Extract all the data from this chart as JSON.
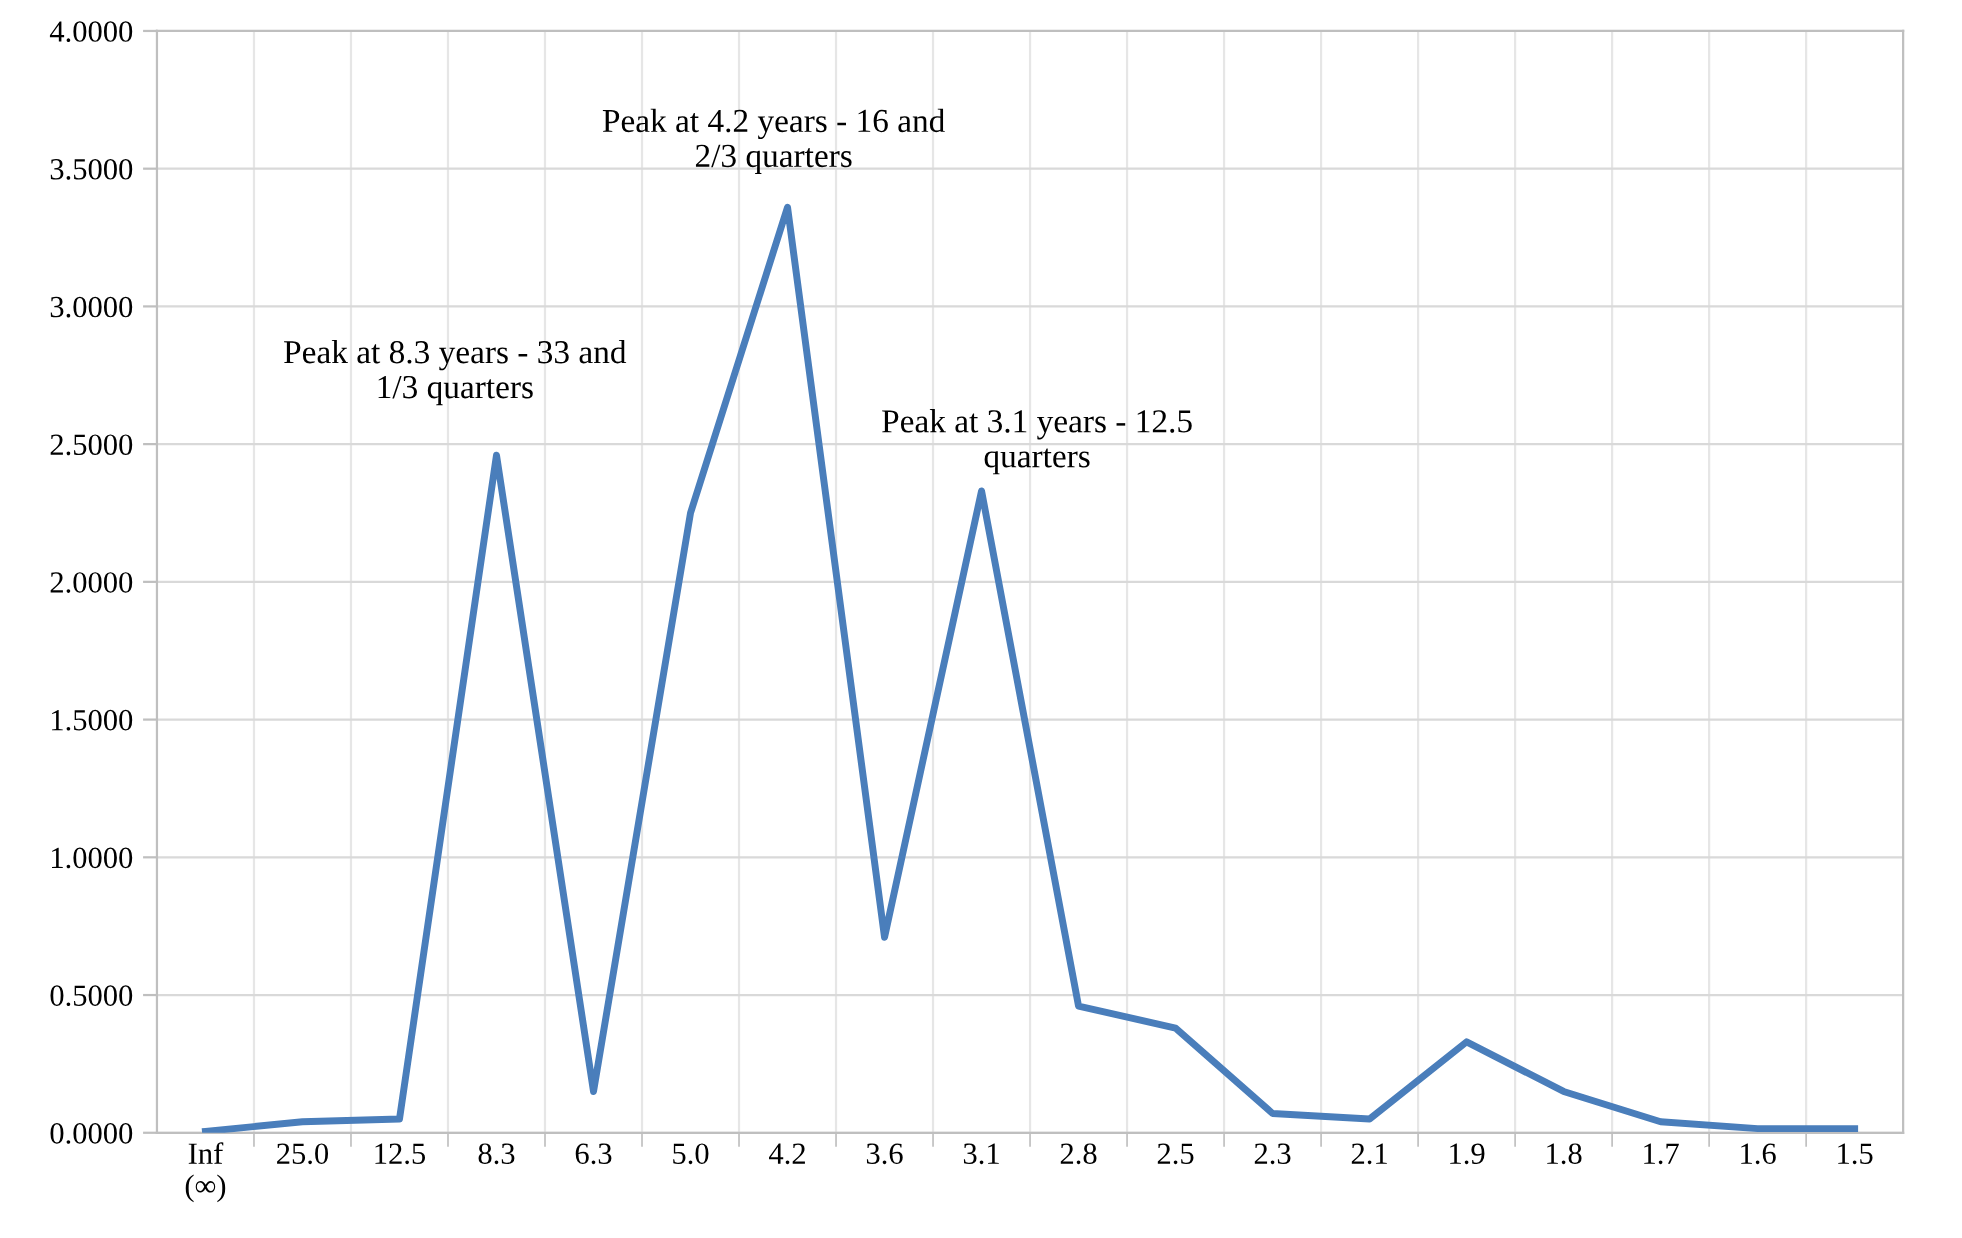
{
  "chart_data": {
    "type": "line",
    "categories": [
      "Inf\n(∞)",
      "25.0",
      "12.5",
      "8.3",
      "6.3",
      "5.0",
      "4.2",
      "3.6",
      "3.1",
      "2.8",
      "2.5",
      "2.3",
      "2.1",
      "1.9",
      "1.8",
      "1.7",
      "1.6",
      "1.5"
    ],
    "series": [
      {
        "color": "#4a7ebb",
        "values": [
          0.005,
          0.04,
          0.05,
          2.46,
          0.15,
          2.25,
          3.36,
          0.71,
          2.33,
          0.46,
          0.38,
          0.07,
          0.05,
          0.33,
          0.15,
          0.04,
          0.015,
          0.015
        ]
      }
    ],
    "ylim": [
      0,
      4
    ],
    "yticks": [
      {
        "value": 0,
        "label": "0.0000"
      },
      {
        "value": 0.5,
        "label": "0.5000"
      },
      {
        "value": 1,
        "label": "1.0000"
      },
      {
        "value": 1.5,
        "label": "1.5000"
      },
      {
        "value": 2,
        "label": "2.0000"
      },
      {
        "value": 2.5,
        "label": "2.5000"
      },
      {
        "value": 3,
        "label": "3.0000"
      },
      {
        "value": 3.5,
        "label": "3.5000"
      },
      {
        "value": 4,
        "label": "4.0000"
      }
    ],
    "grid": true,
    "marker": "none",
    "line_style": "solid",
    "annotations": [
      {
        "text": "Peak at 8.3 years - 33 and\n1/3 quarters",
        "x": "8.3",
        "y": 2.46
      },
      {
        "text": "Peak at 4.2 years - 16 and\n2/3 quarters",
        "x": "4.2",
        "y": 3.36
      },
      {
        "text": "Peak at 3.1 years - 12.5\nquarters",
        "x": "3.1",
        "y": 2.33
      }
    ]
  }
}
